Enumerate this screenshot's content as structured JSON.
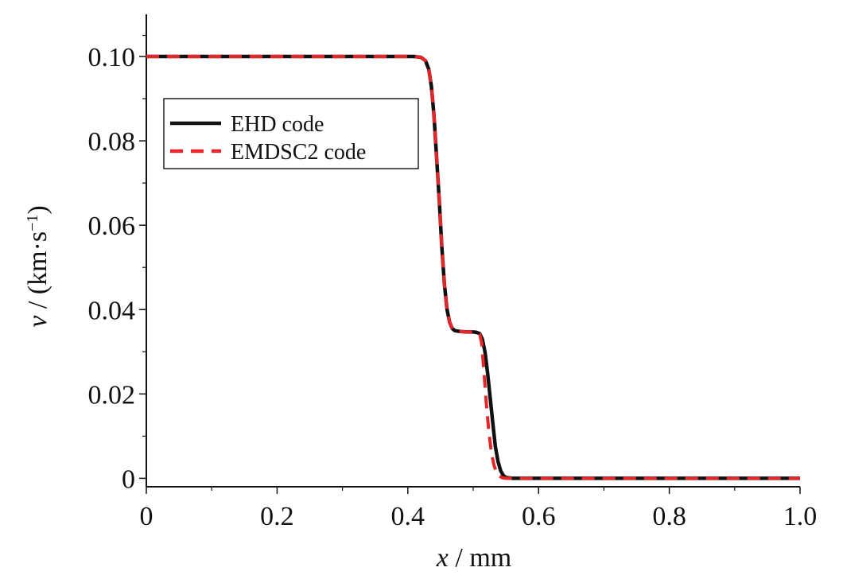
{
  "chart_data": {
    "type": "line",
    "title": "",
    "xlabel": {
      "var": "x",
      "sep": " / ",
      "unit": "mm"
    },
    "ylabel": {
      "var": "v",
      "sep": " / (",
      "unit": "km·s",
      "sup": "−1",
      "close": ")"
    },
    "xlim": [
      0,
      1.0
    ],
    "ylim": [
      -0.002,
      0.11
    ],
    "xticks": [
      0,
      0.2,
      0.4,
      0.6,
      0.8,
      1.0
    ],
    "xtick_labels": [
      "0",
      "0.2",
      "0.4",
      "0.6",
      "0.8",
      "1.0"
    ],
    "yticks": [
      0,
      0.02,
      0.04,
      0.06,
      0.08,
      0.1
    ],
    "ytick_labels": [
      "0",
      "0.02",
      "0.04",
      "0.06",
      "0.08",
      "0.10"
    ],
    "grid": false,
    "legend_position": "upper-left",
    "series": [
      {
        "name": "EHD code",
        "color": "#111111",
        "style": "solid",
        "x": [
          0,
          0.41,
          0.42,
          0.427,
          0.432,
          0.436,
          0.44,
          0.444,
          0.448,
          0.452,
          0.456,
          0.46,
          0.464,
          0.468,
          0.472,
          0.48,
          0.49,
          0.5,
          0.505,
          0.51,
          0.514,
          0.518,
          0.522,
          0.526,
          0.53,
          0.534,
          0.538,
          0.542,
          0.546,
          0.55,
          0.56,
          0.6,
          1.0
        ],
        "y": [
          0.1,
          0.1,
          0.0998,
          0.099,
          0.097,
          0.093,
          0.086,
          0.076,
          0.066,
          0.055,
          0.046,
          0.04,
          0.037,
          0.0355,
          0.035,
          0.0348,
          0.0347,
          0.0347,
          0.0346,
          0.0343,
          0.033,
          0.03,
          0.025,
          0.019,
          0.013,
          0.0075,
          0.004,
          0.0018,
          0.0007,
          0.0002,
          0.0,
          0.0,
          0.0
        ]
      },
      {
        "name": "EMDSC2 code",
        "color": "#e8262a",
        "style": "dashed",
        "x": [
          0,
          0.41,
          0.42,
          0.427,
          0.432,
          0.436,
          0.44,
          0.444,
          0.448,
          0.452,
          0.456,
          0.46,
          0.464,
          0.468,
          0.472,
          0.48,
          0.49,
          0.5,
          0.505,
          0.51,
          0.513,
          0.516,
          0.52,
          0.524,
          0.528,
          0.532,
          0.536,
          0.54,
          0.545,
          0.55,
          0.56,
          0.6,
          1.0
        ],
        "y": [
          0.1,
          0.1,
          0.0998,
          0.099,
          0.097,
          0.093,
          0.086,
          0.076,
          0.066,
          0.055,
          0.046,
          0.04,
          0.037,
          0.0355,
          0.035,
          0.0348,
          0.0347,
          0.0347,
          0.0346,
          0.0342,
          0.032,
          0.026,
          0.018,
          0.011,
          0.006,
          0.003,
          0.0013,
          0.0005,
          0.0001,
          0.0,
          0.0,
          0.0,
          0.0
        ]
      }
    ]
  }
}
